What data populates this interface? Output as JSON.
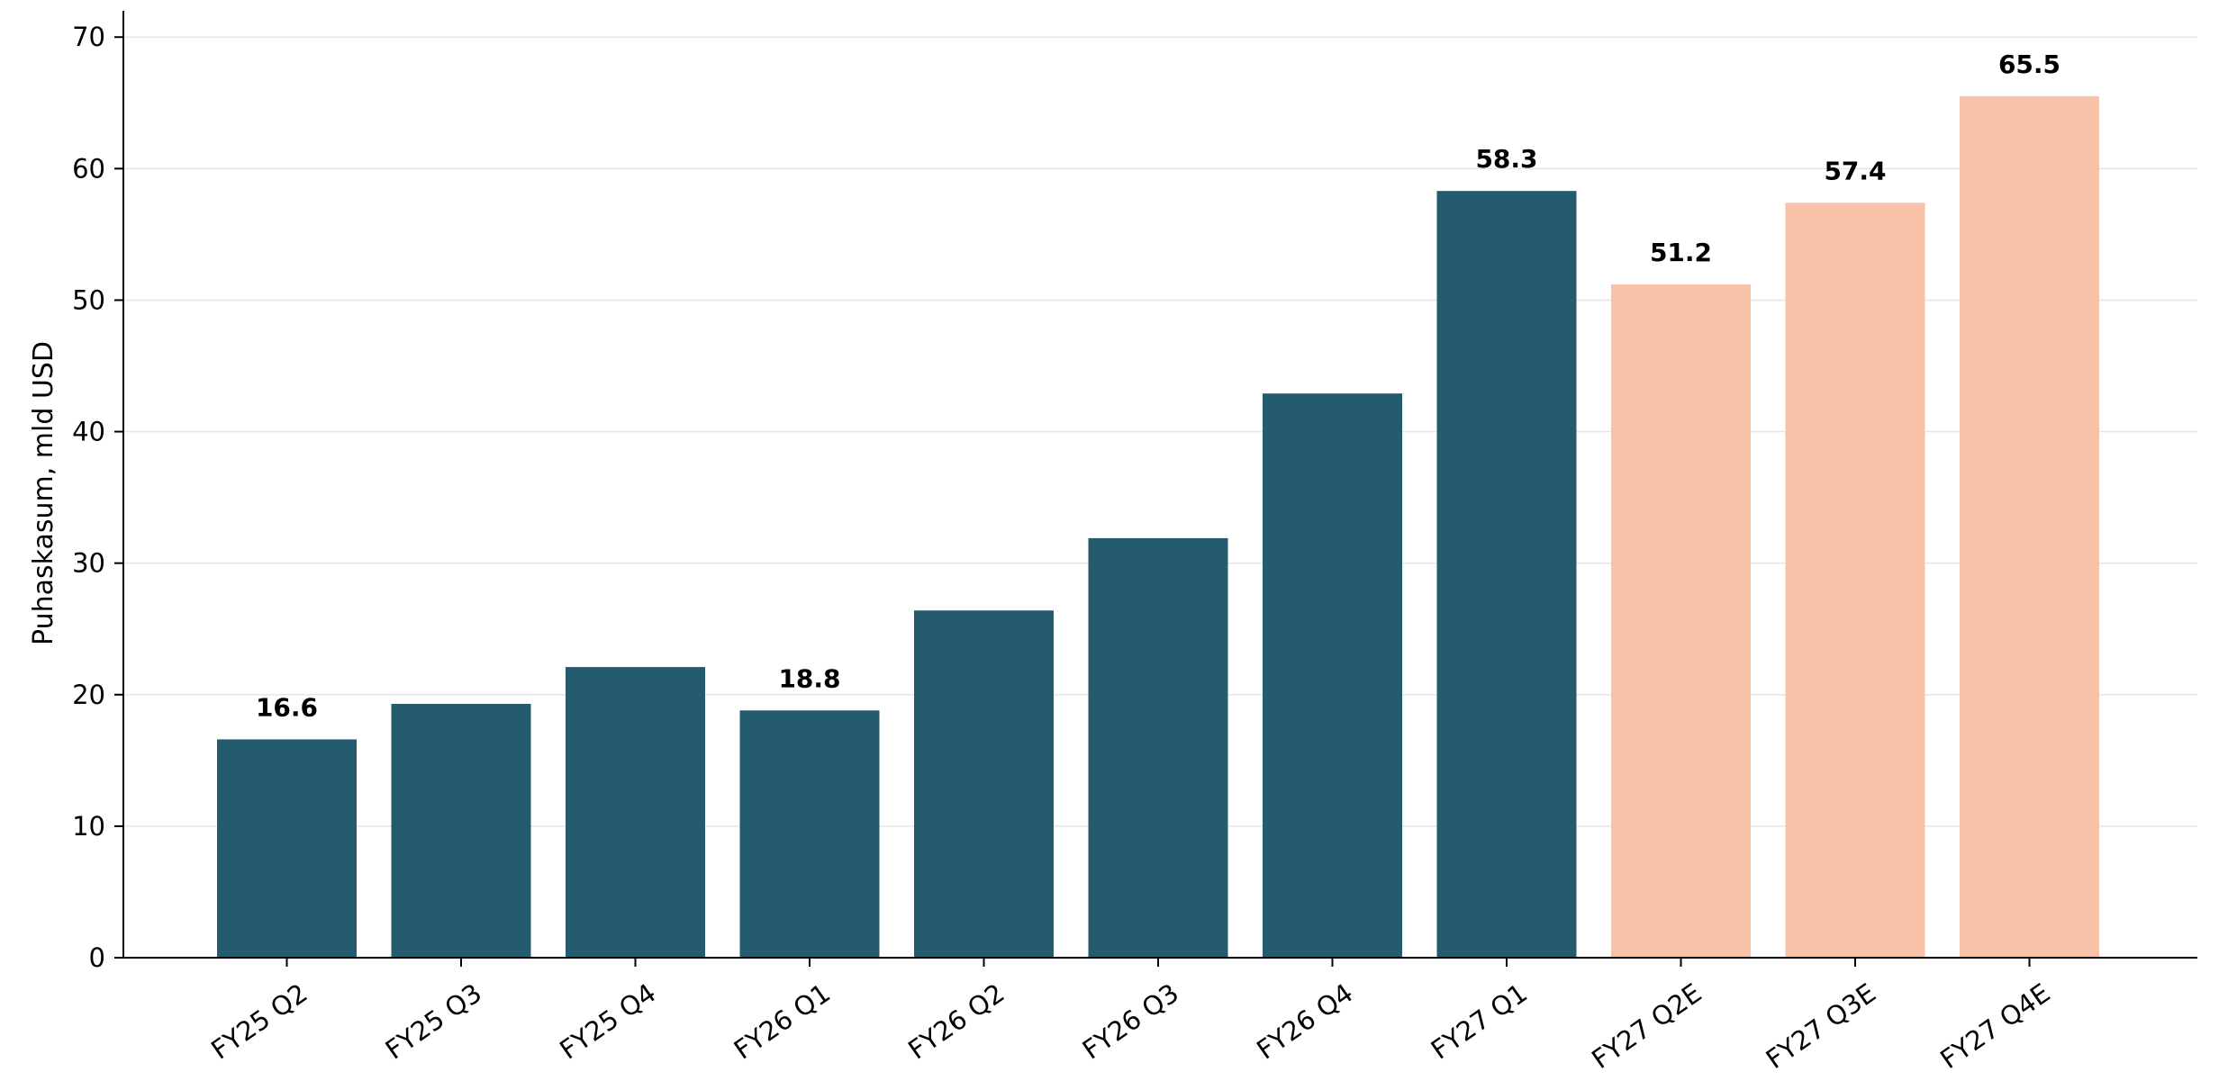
{
  "chart_data": {
    "type": "bar",
    "title": "",
    "xlabel": "",
    "ylabel": "Puhaskasum, mld USD",
    "ylim": [
      0,
      72
    ],
    "yticks": [
      0,
      10,
      20,
      30,
      40,
      50,
      60,
      70
    ],
    "grid": "horizontal",
    "categories": [
      "FY25 Q2",
      "FY25 Q3",
      "FY25 Q4",
      "FY26 Q1",
      "FY26 Q2",
      "FY26 Q3",
      "FY26 Q4",
      "FY27 Q1",
      "FY27 Q2E",
      "FY27 Q3E",
      "FY27 Q4E"
    ],
    "values": [
      16.6,
      19.3,
      22.1,
      18.8,
      26.4,
      31.9,
      42.9,
      58.3,
      51.2,
      57.4,
      65.5
    ],
    "bar_kind": [
      "actual",
      "actual",
      "actual",
      "actual",
      "actual",
      "actual",
      "actual",
      "actual",
      "estimate",
      "estimate",
      "estimate"
    ],
    "data_labels": [
      "16.6",
      "",
      "",
      "18.8",
      "",
      "",
      "",
      "58.3",
      "51.2",
      "57.4",
      "65.5"
    ],
    "colors": {
      "actual": "#255b6e",
      "estimate": "#f8c2a8",
      "axis": "#000000",
      "grid": "#e6e6e6",
      "text": "#000000"
    }
  }
}
